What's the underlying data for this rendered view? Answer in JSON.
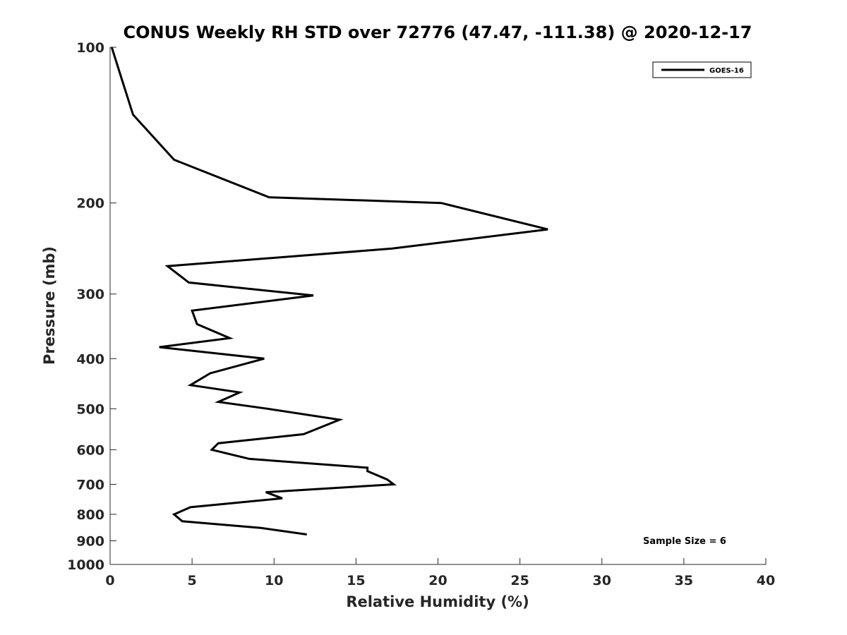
{
  "chart_data": {
    "type": "line",
    "title": "CONUS Weekly RH STD over 72776 (47.47, -111.38) @ 2020-12-17",
    "xlabel": "Relative Humidity (%)",
    "ylabel": "Pressure (mb)",
    "xlim": [
      0,
      40
    ],
    "ylim": [
      100,
      1000
    ],
    "yscale": "log",
    "yreversed": true,
    "grid": false,
    "xticks": [
      0,
      5,
      10,
      15,
      20,
      25,
      30,
      35,
      40
    ],
    "xtick_labels": [
      "0",
      "5",
      "10",
      "15",
      "20",
      "25",
      "30",
      "35",
      "40"
    ],
    "yticks": [
      100,
      200,
      300,
      400,
      500,
      600,
      700,
      800,
      900,
      1000
    ],
    "ytick_labels": [
      "100",
      "200",
      "300",
      "400",
      "500",
      "600",
      "700",
      "800",
      "900",
      "1000"
    ],
    "legend": {
      "position": "top-right",
      "entries": [
        "GOES-16"
      ]
    },
    "annotation": "Sample Size = 6",
    "series": [
      {
        "name": "GOES-16",
        "color": "#000000",
        "x": [
          0.1,
          0.7,
          1.4,
          3.9,
          9.7,
          20.2,
          26.7,
          17.2,
          3.5,
          4.8,
          12.4,
          5.0,
          5.3,
          7.3,
          3.0,
          9.4,
          6.1,
          4.9,
          7.9,
          6.6,
          9.6,
          14.0,
          11.8,
          6.6,
          6.2,
          8.5,
          15.7,
          15.7,
          16.9,
          17.3,
          9.5,
          10.5,
          4.9,
          3.9,
          4.4,
          9.2,
          12.0
        ],
        "y": [
          100,
          115,
          135,
          165,
          195,
          200,
          225,
          245,
          265,
          285,
          302,
          323,
          343,
          365,
          380,
          400,
          427,
          450,
          465,
          485,
          500,
          525,
          560,
          583,
          600,
          625,
          650,
          660,
          685,
          700,
          725,
          745,
          775,
          800,
          825,
          850,
          875
        ]
      }
    ]
  }
}
